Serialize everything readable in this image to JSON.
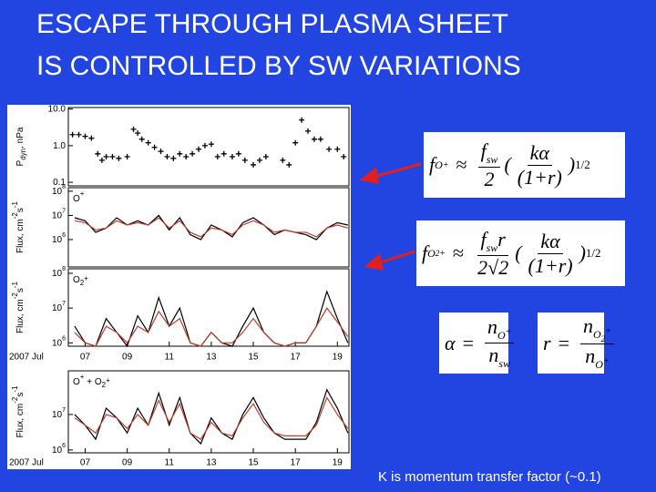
{
  "title": [
    "ESCAPE THROUGH PLASMA SHEET",
    "IS CONTROLLED BY SW VARIATIONS"
  ],
  "chart_data": [
    {
      "type": "scatter",
      "log_scale": true,
      "color": "#000000",
      "ylabel": [
        {
          "text": "P"
        },
        {
          "text": "dyn",
          "pos": "sub"
        },
        {
          "text": ", nPa"
        }
      ],
      "xlim": [
        6.2,
        19.55
      ],
      "ylim": [
        0.08,
        11
      ],
      "yticks": [
        {
          "value": 10,
          "label": "10.0"
        },
        {
          "value": 1,
          "label": "1.0"
        },
        {
          "value": 0.1,
          "label": "0.1"
        }
      ],
      "x": [
        6.4,
        6.7,
        7.0,
        7.3,
        7.6,
        7.8,
        8.0,
        8.3,
        8.6,
        9.0,
        9.3,
        9.5,
        9.7,
        10.0,
        10.3,
        10.6,
        10.9,
        11.2,
        11.5,
        11.8,
        12.1,
        12.4,
        12.7,
        13.0,
        13.3,
        13.6,
        14.0,
        14.3,
        14.6,
        15.0,
        15.3,
        15.6,
        16.4,
        16.7,
        17.0,
        17.3,
        17.6,
        17.9,
        18.2,
        18.6,
        19.0,
        19.3
      ],
      "values": [
        2,
        2,
        1.8,
        1.6,
        0.6,
        0.4,
        0.5,
        0.5,
        0.45,
        0.5,
        2.8,
        2.2,
        1.5,
        1.2,
        0.9,
        0.7,
        0.5,
        0.45,
        0.6,
        0.5,
        0.6,
        0.8,
        1.0,
        1.1,
        0.5,
        0.6,
        0.5,
        0.6,
        0.4,
        0.3,
        0.4,
        0.5,
        0.4,
        0.3,
        1.2,
        5,
        2.5,
        1.5,
        1.5,
        0.8,
        0.8,
        0.5
      ]
    },
    {
      "type": "line",
      "log_scale": true,
      "ylabel": [
        {
          "text": "Flux, cm"
        },
        {
          "text": "-2",
          "pos": "sup"
        },
        {
          "text": "s"
        },
        {
          "text": "-1",
          "pos": "sup"
        }
      ],
      "label": [
        {
          "text": "O"
        },
        {
          "text": "+",
          "pos": "sup"
        }
      ],
      "xlim": [
        6.2,
        19.55
      ],
      "ylim": [
        74000,
        140000000
      ],
      "yticks": [
        {
          "value": 100000000,
          "label": "10",
          "exp": "8"
        },
        {
          "value": 10000000,
          "label": "10",
          "exp": "7"
        },
        {
          "value": 1000000,
          "label": "10",
          "exp": "6"
        }
      ],
      "x": [
        6.5,
        7,
        7.5,
        8,
        8.5,
        9,
        9.5,
        10,
        10.5,
        11,
        11.5,
        12,
        12.5,
        13,
        13.5,
        14,
        14.5,
        15,
        15.5,
        16,
        16.5,
        17,
        17.5,
        18,
        18.5,
        19,
        19.5
      ],
      "series": [
        {
          "color": "#000000",
          "values": [
            8000000.0,
            6000000.0,
            2000000.0,
            3000000.0,
            8000000.0,
            4000000.0,
            6000000.0,
            4000000.0,
            10000000.0,
            2500000.0,
            8000000.0,
            1600000.0,
            1000000.0,
            4000000.0,
            2500000.0,
            1300000.0,
            5000000.0,
            8000000.0,
            4000000.0,
            1600000.0,
            2500000.0,
            2000000.0,
            1600000.0,
            1000000.0,
            3000000.0,
            5000000.0,
            4000000.0
          ]
        },
        {
          "color": "#b8402c",
          "values": [
            6000000.0,
            5000000.0,
            2500000.0,
            3000000.0,
            6000000.0,
            4000000.0,
            5000000.0,
            4000000.0,
            8000000.0,
            3000000.0,
            6000000.0,
            2000000.0,
            1300000.0,
            3000000.0,
            2500000.0,
            1600000.0,
            4000000.0,
            6000000.0,
            4000000.0,
            2000000.0,
            2500000.0,
            2000000.0,
            2000000.0,
            1300000.0,
            3000000.0,
            4000000.0,
            3000000.0
          ]
        }
      ]
    },
    {
      "type": "line",
      "log_scale": true,
      "ylabel": [
        {
          "text": "Flux, cm"
        },
        {
          "text": "-2",
          "pos": "sup"
        },
        {
          "text": "s"
        },
        {
          "text": "-1",
          "pos": "sup"
        }
      ],
      "label": [
        {
          "text": "O"
        },
        {
          "text": "2",
          "pos": "sub"
        },
        {
          "text": "+",
          "pos": "sup"
        }
      ],
      "xlim": [
        6.2,
        19.55
      ],
      "ylim": [
        800000,
        135000000
      ],
      "yticks": [
        {
          "value": 100000000,
          "label": "10",
          "exp": "8"
        },
        {
          "value": 10000000,
          "label": "10",
          "exp": "7"
        },
        {
          "value": 1000000,
          "label": "10",
          "exp": "6"
        }
      ],
      "xticks": [
        {
          "value": 7,
          "label": "07"
        },
        {
          "value": 9,
          "label": "09"
        },
        {
          "value": 11,
          "label": "11"
        },
        {
          "value": 13,
          "label": "13"
        },
        {
          "value": 15,
          "label": "15"
        },
        {
          "value": 17,
          "label": "17"
        },
        {
          "value": 19,
          "label": "19"
        }
      ],
      "date_label": "2007 Jul",
      "x": [
        6.5,
        7,
        7.5,
        8,
        8.5,
        9,
        9.5,
        10,
        10.5,
        11,
        11.5,
        12,
        12.5,
        13,
        13.5,
        14,
        14.5,
        15,
        15.5,
        16,
        16.5,
        17,
        17.5,
        18,
        18.5,
        19,
        19.5
      ],
      "series": [
        {
          "color": "#000000",
          "values": [
            3000000.0,
            1000000.0,
            800000.0,
            5000000.0,
            2000000.0,
            800000.0,
            6000000.0,
            2000000.0,
            20000000.0,
            3000000.0,
            10000000.0,
            1000000.0,
            800000.0,
            2000000.0,
            1000000.0,
            800000.0,
            3000000.0,
            10000000.0,
            2000000.0,
            1000000.0,
            800000.0,
            1000000.0,
            1000000.0,
            3000000.0,
            30000000.0,
            5000000.0,
            1000000.0
          ]
        },
        {
          "color": "#b8402c",
          "values": [
            2000000.0,
            1000000.0,
            800000.0,
            3000000.0,
            2000000.0,
            1000000.0,
            3000000.0,
            2000000.0,
            8000000.0,
            3000000.0,
            5000000.0,
            1000000.0,
            800000.0,
            2000000.0,
            1000000.0,
            1000000.0,
            2000000.0,
            5000000.0,
            2000000.0,
            1000000.0,
            800000.0,
            1000000.0,
            1000000.0,
            3000000.0,
            10000000.0,
            4000000.0,
            1500000.0
          ]
        }
      ]
    },
    {
      "type": "line",
      "log_scale": true,
      "ylabel": [
        {
          "text": "Flux, cm"
        },
        {
          "text": "-2",
          "pos": "sup"
        },
        {
          "text": "s"
        },
        {
          "text": "-1",
          "pos": "sup"
        }
      ],
      "label": [
        {
          "text": "O"
        },
        {
          "text": "+",
          "pos": "sup"
        },
        {
          "text": " + O"
        },
        {
          "text": "2",
          "pos": "sub"
        },
        {
          "text": "+",
          "pos": "sup"
        }
      ],
      "xlim": [
        6.2,
        19.55
      ],
      "ylim": [
        830000,
        170000000
      ],
      "yticks": [
        {
          "value": 10000000,
          "label": "10",
          "exp": "7"
        },
        {
          "value": 1000000,
          "label": "10",
          "exp": "6"
        }
      ],
      "xticks": [
        {
          "value": 7,
          "label": "07"
        },
        {
          "value": 9,
          "label": "09"
        },
        {
          "value": 11,
          "label": "11"
        },
        {
          "value": 13,
          "label": "13"
        },
        {
          "value": 15,
          "label": "15"
        },
        {
          "value": 17,
          "label": "17"
        },
        {
          "value": 19,
          "label": "19"
        }
      ],
      "date_label": "2007 Jul",
      "x": [
        6.5,
        7,
        7.5,
        8,
        8.5,
        9,
        9.5,
        10,
        10.5,
        11,
        11.5,
        12,
        12.5,
        13,
        13.5,
        14,
        14.5,
        15,
        15.5,
        16,
        16.5,
        17,
        17.5,
        18,
        18.5,
        19,
        19.5
      ],
      "series": [
        {
          "color": "#000000",
          "values": [
            10000000.0,
            5000000.0,
            2000000.0,
            15000000.0,
            8000000.0,
            3000000.0,
            15000000.0,
            5000000.0,
            40000000.0,
            5000000.0,
            30000000.0,
            3000000.0,
            1500000.0,
            8000000.0,
            3000000.0,
            2000000.0,
            10000000.0,
            30000000.0,
            8000000.0,
            3000000.0,
            2000000.0,
            2000000.0,
            2000000.0,
            6000000.0,
            50000000.0,
            15000000.0,
            3000000.0
          ]
        },
        {
          "color": "#b8402c",
          "values": [
            8000000.0,
            5000000.0,
            3000000.0,
            10000000.0,
            8000000.0,
            4000000.0,
            10000000.0,
            5000000.0,
            25000000.0,
            6000000.0,
            20000000.0,
            3000000.0,
            2000000.0,
            6000000.0,
            3000000.0,
            2500000.0,
            8000000.0,
            20000000.0,
            6000000.0,
            3000000.0,
            2500000.0,
            2500000.0,
            2500000.0,
            5000000.0,
            30000000.0,
            10000000.0,
            4000000.0
          ]
        }
      ]
    }
  ],
  "equations": [
    [
      {
        "text": "f"
      },
      {
        "text": "O",
        "pos": "sub"
      },
      {
        "text": "+",
        "pos": "subsup"
      },
      {
        "text": "≈",
        "pos": "op"
      },
      {
        "frac": [
          [
            {
              "text": "f"
            },
            {
              "text": "sw",
              "pos": "sub"
            }
          ],
          [
            {
              "text": "2"
            }
          ]
        ]
      },
      {
        "text": "("
      },
      {
        "frac": [
          [
            {
              "text": "kα"
            }
          ],
          [
            {
              "text": "(1+"
            },
            {
              "text": "r"
            },
            {
              "text": ")"
            }
          ]
        ]
      },
      {
        "text": ")"
      },
      {
        "text": "1/2",
        "pos": "sup"
      }
    ],
    [
      {
        "text": "f"
      },
      {
        "text": "O",
        "pos": "sub"
      },
      {
        "text": "2",
        "pos": "subsub"
      },
      {
        "text": "+",
        "pos": "subsup"
      },
      {
        "text": "≈",
        "pos": "op"
      },
      {
        "frac": [
          [
            {
              "text": "f"
            },
            {
              "text": "sw",
              "pos": "sub"
            },
            {
              "text": "r"
            }
          ],
          [
            {
              "text": "2√2"
            }
          ]
        ]
      },
      {
        "text": "("
      },
      {
        "frac": [
          [
            {
              "text": "kα"
            }
          ],
          [
            {
              "text": "(1+"
            },
            {
              "text": "r"
            },
            {
              "text": ")"
            }
          ]
        ]
      },
      {
        "text": ")"
      },
      {
        "text": "1/2",
        "pos": "sup"
      }
    ],
    [
      {
        "text": "α"
      },
      {
        "text": "=",
        "pos": "op"
      },
      {
        "frac": [
          [
            {
              "text": "n"
            },
            {
              "text": "O",
              "pos": "sub"
            },
            {
              "text": "+",
              "pos": "subsup"
            }
          ],
          [
            {
              "text": "n"
            },
            {
              "text": "sw",
              "pos": "sub"
            }
          ]
        ]
      }
    ],
    [
      {
        "text": "r"
      },
      {
        "text": "=",
        "pos": "op"
      },
      {
        "frac": [
          [
            {
              "text": "n"
            },
            {
              "text": "O",
              "pos": "sub"
            },
            {
              "text": "2",
              "pos": "subsub"
            },
            {
              "text": "+",
              "pos": "subsup"
            }
          ],
          [
            {
              "text": "n"
            },
            {
              "text": "O",
              "pos": "sub"
            },
            {
              "text": "+",
              "pos": "subsup"
            }
          ]
        ]
      }
    ]
  ],
  "footnote": "K is momentum transfer factor (~0.1)"
}
